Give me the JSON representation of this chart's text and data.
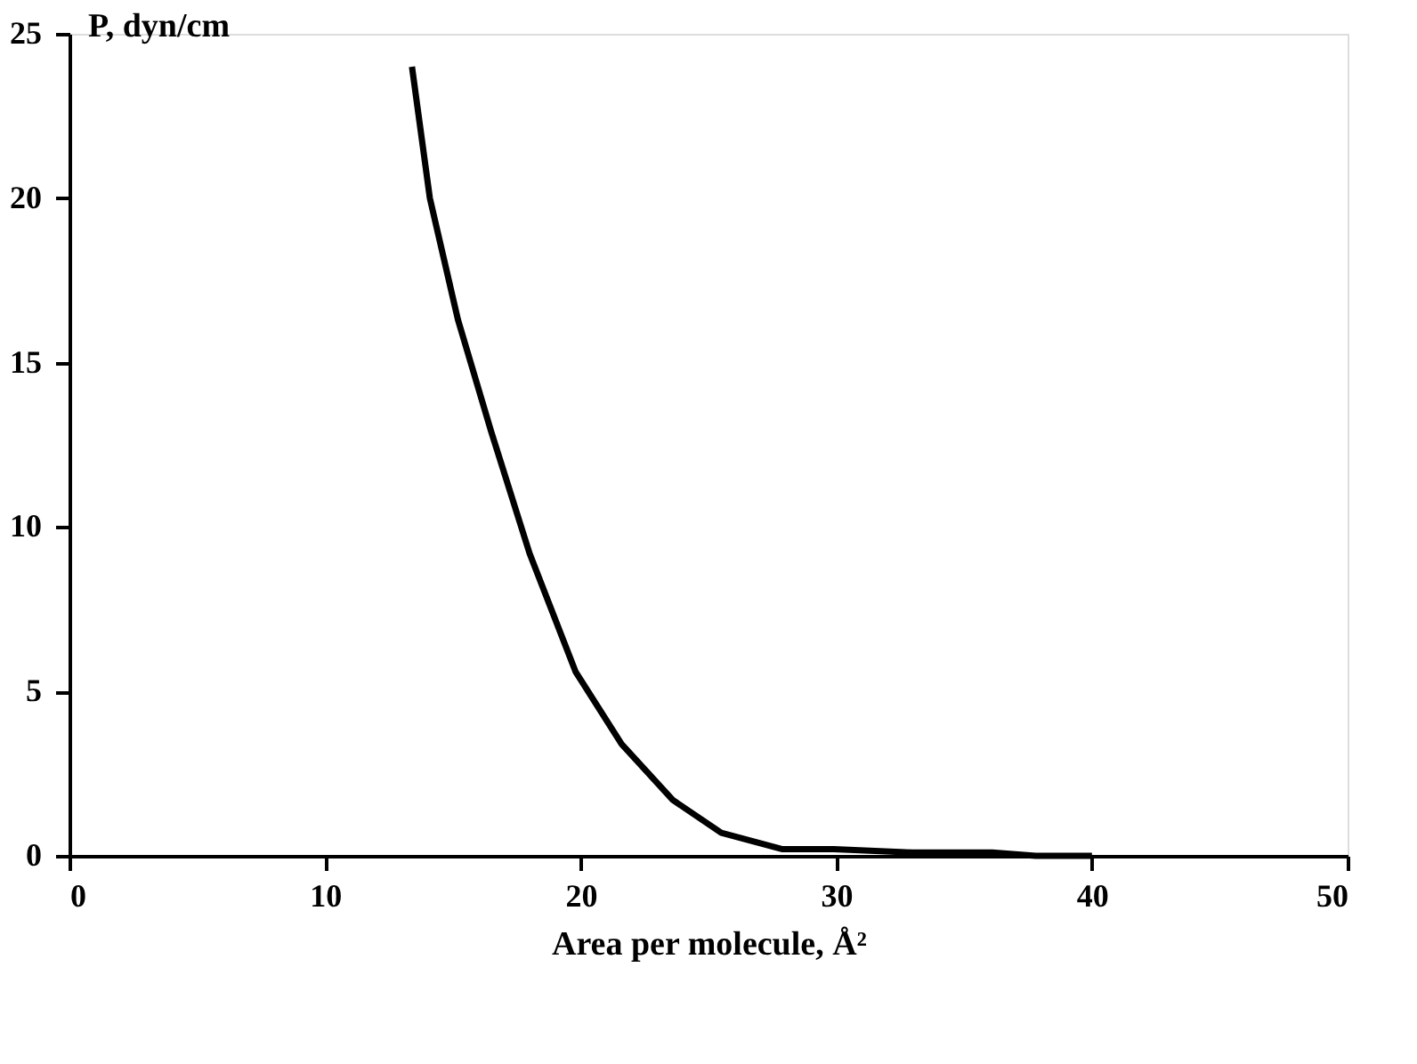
{
  "chart_data": {
    "type": "line",
    "xlabel": "Area per molecule, Å²",
    "ylabel": "P, dyn/cm",
    "x": [
      13.4,
      14.1,
      15.2,
      16.5,
      18.0,
      19.8,
      21.6,
      23.6,
      25.5,
      27.9,
      29.9,
      33.0,
      36.1,
      37.8,
      40.0
    ],
    "series": [
      {
        "color": "#000000",
        "values": [
          24.0,
          20.0,
          16.3,
          12.9,
          9.2,
          5.6,
          3.4,
          1.7,
          0.7,
          0.2,
          0.2,
          0.1,
          0.1,
          0.0,
          0.0
        ]
      }
    ],
    "xlim": [
      0,
      50
    ],
    "xticks": [
      0,
      10,
      20,
      30,
      40,
      50
    ],
    "ylim": [
      0,
      25
    ],
    "yticks": [
      0,
      5,
      10,
      15,
      20,
      25
    ],
    "grid": false,
    "legend": false,
    "marker": "none",
    "line_style": "solid"
  }
}
